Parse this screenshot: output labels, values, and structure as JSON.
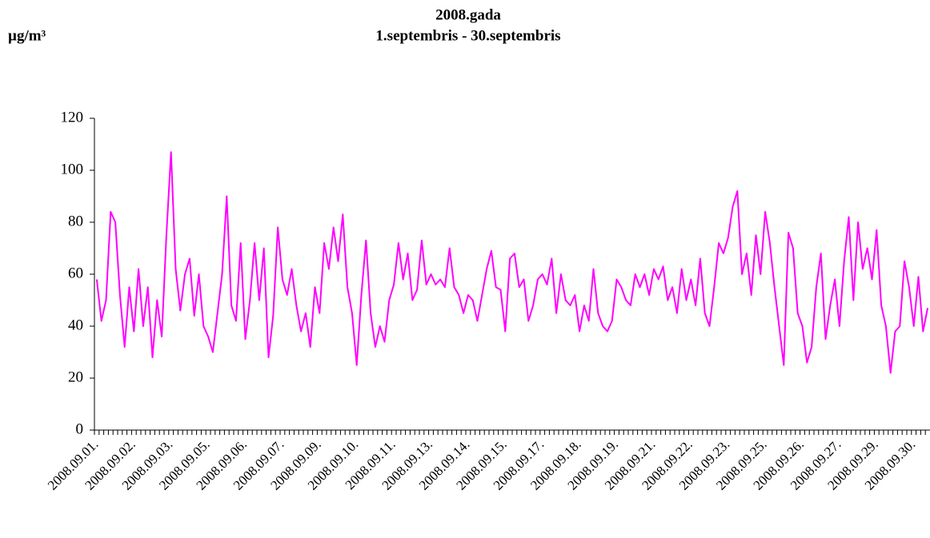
{
  "chart_data": {
    "type": "line",
    "title": "2008.gada",
    "subtitle": "1.septembris - 30.septembris",
    "y_label": "µg/m³",
    "categories": [
      "2008.09.01.",
      null,
      null,
      null,
      null,
      null,
      null,
      null,
      "2008.09.02.",
      null,
      null,
      null,
      null,
      null,
      null,
      null,
      "2008.09.03.",
      null,
      null,
      null,
      null,
      null,
      null,
      null,
      "2008.09.05.",
      null,
      null,
      null,
      null,
      null,
      null,
      null,
      "2008.09.06.",
      null,
      null,
      null,
      null,
      null,
      null,
      null,
      "2008.09.07.",
      null,
      null,
      null,
      null,
      null,
      null,
      null,
      "2008.09.09.",
      null,
      null,
      null,
      null,
      null,
      null,
      null,
      "2008.09.10.",
      null,
      null,
      null,
      null,
      null,
      null,
      null,
      "2008.09.11.",
      null,
      null,
      null,
      null,
      null,
      null,
      null,
      "2008.09.13.",
      null,
      null,
      null,
      null,
      null,
      null,
      null,
      "2008.09.14.",
      null,
      null,
      null,
      null,
      null,
      null,
      null,
      "2008.09.15.",
      null,
      null,
      null,
      null,
      null,
      null,
      null,
      "2008.09.17.",
      null,
      null,
      null,
      null,
      null,
      null,
      null,
      "2008.09.18.",
      null,
      null,
      null,
      null,
      null,
      null,
      null,
      "2008.09.19.",
      null,
      null,
      null,
      null,
      null,
      null,
      null,
      "2008.09.21.",
      null,
      null,
      null,
      null,
      null,
      null,
      null,
      "2008.09.22.",
      null,
      null,
      null,
      null,
      null,
      null,
      null,
      "2008.09.23.",
      null,
      null,
      null,
      null,
      null,
      null,
      null,
      "2008.09.25.",
      null,
      null,
      null,
      null,
      null,
      null,
      null,
      "2008.09.26.",
      null,
      null,
      null,
      null,
      null,
      null,
      null,
      "2008.09.27.",
      null,
      null,
      null,
      null,
      null,
      null,
      null,
      "2008.09.29.",
      null,
      null,
      null,
      null,
      null,
      null,
      null,
      "2008.09.30.",
      null,
      null,
      null
    ],
    "values": [
      58,
      42,
      50,
      84,
      80,
      52,
      32,
      55,
      38,
      62,
      40,
      55,
      28,
      50,
      36,
      75,
      107,
      62,
      46,
      60,
      66,
      44,
      60,
      40,
      36,
      30,
      45,
      60,
      90,
      48,
      42,
      72,
      35,
      50,
      72,
      50,
      70,
      28,
      44,
      78,
      58,
      52,
      62,
      48,
      38,
      45,
      32,
      55,
      45,
      72,
      62,
      78,
      65,
      83,
      55,
      45,
      25,
      52,
      73,
      45,
      32,
      40,
      34,
      50,
      56,
      72,
      58,
      68,
      50,
      54,
      73,
      56,
      60,
      56,
      58,
      55,
      70,
      55,
      52,
      45,
      52,
      50,
      42,
      52,
      62,
      69,
      55,
      54,
      38,
      66,
      68,
      55,
      58,
      42,
      48,
      58,
      60,
      56,
      66,
      45,
      60,
      50,
      48,
      52,
      38,
      48,
      42,
      62,
      45,
      40,
      38,
      42,
      58,
      55,
      50,
      48,
      60,
      55,
      60,
      52,
      62,
      58,
      63,
      50,
      55,
      45,
      62,
      50,
      58,
      48,
      66,
      45,
      40,
      55,
      72,
      68,
      74,
      86,
      92,
      60,
      68,
      52,
      75,
      60,
      84,
      72,
      55,
      40,
      25,
      76,
      70,
      45,
      40,
      26,
      32,
      55,
      68,
      35,
      48,
      58,
      40,
      65,
      82,
      50,
      80,
      62,
      70,
      58,
      77,
      48,
      40,
      22,
      38,
      40,
      65,
      55,
      40,
      59,
      38,
      47
    ],
    "color": "#ff00ff",
    "ylim": [
      0,
      120
    ],
    "yticks": [
      0,
      20,
      40,
      60,
      80,
      100,
      120
    ],
    "grid": false
  }
}
